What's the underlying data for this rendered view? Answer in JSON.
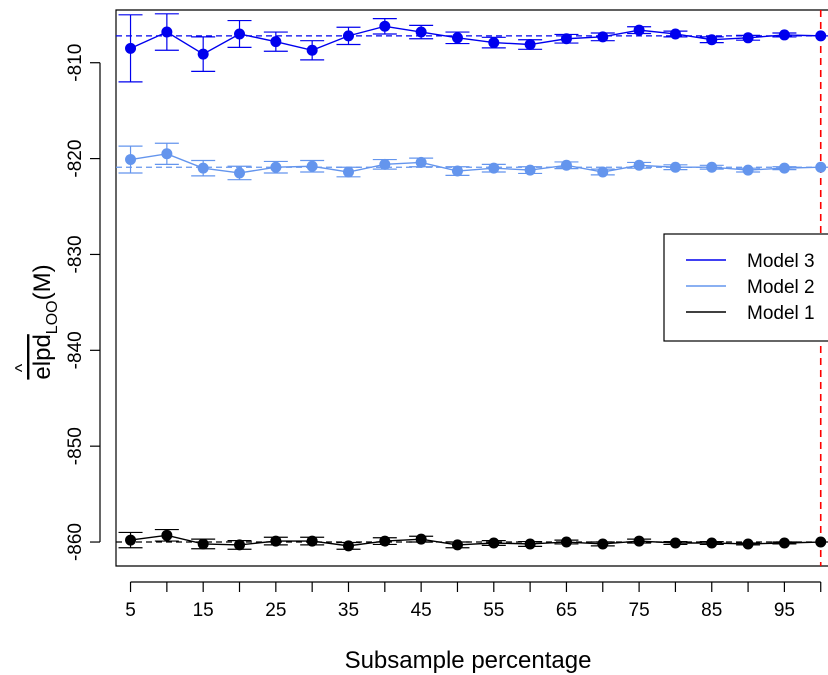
{
  "chart_data": {
    "type": "line",
    "title": "",
    "xlabel": "Subsample percentage",
    "ylabel": {
      "hat": "^",
      "base": "elpd",
      "subscript": "LOO",
      "suffix": "(M)"
    },
    "xlim": [
      3,
      101
    ],
    "ylim": [
      -862.5,
      -804.5
    ],
    "x_ticks": [
      5,
      10,
      15,
      20,
      25,
      30,
      35,
      40,
      45,
      50,
      55,
      60,
      65,
      70,
      75,
      80,
      85,
      90,
      95,
      100
    ],
    "x_tick_labels": [
      "5",
      "15",
      "25",
      "35",
      "45",
      "55",
      "65",
      "75",
      "85",
      "95"
    ],
    "x_tick_label_values": [
      5,
      15,
      25,
      35,
      45,
      55,
      65,
      75,
      85,
      95
    ],
    "y_ticks": [
      -810,
      -820,
      -830,
      -840,
      -850,
      -860
    ],
    "y_tick_labels": [
      "-810",
      "-820",
      "-830",
      "-840",
      "-850",
      "-860"
    ],
    "x": [
      5,
      10,
      15,
      20,
      25,
      30,
      35,
      40,
      45,
      50,
      55,
      60,
      65,
      70,
      75,
      80,
      85,
      90,
      95,
      100
    ],
    "series": [
      {
        "name": "Model 3",
        "color": "#0000ee",
        "reference": -807.2,
        "values": [
          -808.5,
          -806.8,
          -809.1,
          -807.0,
          -807.8,
          -808.7,
          -807.2,
          -806.2,
          -806.8,
          -807.4,
          -807.9,
          -808.1,
          -807.5,
          -807.3,
          -806.6,
          -807.0,
          -807.6,
          -807.4,
          -807.1,
          -807.2
        ],
        "err": [
          3.5,
          1.9,
          1.8,
          1.4,
          1.0,
          1.0,
          0.9,
          0.8,
          0.7,
          0.6,
          0.55,
          0.5,
          0.45,
          0.4,
          0.35,
          0.3,
          0.3,
          0.25,
          0.2,
          0.0
        ]
      },
      {
        "name": "Model 2",
        "color": "#6495ed",
        "reference": -820.9,
        "values": [
          -820.1,
          -819.5,
          -821.0,
          -821.5,
          -820.9,
          -820.8,
          -821.4,
          -820.6,
          -820.4,
          -821.3,
          -821.0,
          -821.2,
          -820.7,
          -821.4,
          -820.7,
          -820.9,
          -820.9,
          -821.2,
          -821.0,
          -820.9
        ],
        "err": [
          1.4,
          1.1,
          0.8,
          0.7,
          0.6,
          0.6,
          0.5,
          0.5,
          0.45,
          0.45,
          0.4,
          0.35,
          0.35,
          0.3,
          0.3,
          0.25,
          0.2,
          0.2,
          0.15,
          0.0
        ]
      },
      {
        "name": "Model 1",
        "color": "#000000",
        "reference": -860.0,
        "values": [
          -859.8,
          -859.3,
          -860.2,
          -860.3,
          -859.9,
          -859.9,
          -860.4,
          -859.9,
          -859.7,
          -860.3,
          -860.1,
          -860.2,
          -860.0,
          -860.2,
          -859.9,
          -860.1,
          -860.1,
          -860.2,
          -860.1,
          -860.0
        ],
        "err": [
          0.8,
          0.6,
          0.5,
          0.45,
          0.4,
          0.4,
          0.35,
          0.35,
          0.3,
          0.3,
          0.25,
          0.25,
          0.2,
          0.2,
          0.2,
          0.15,
          0.15,
          0.1,
          0.1,
          0.0
        ]
      }
    ],
    "vline": {
      "x": 100,
      "color": "#ff0000",
      "style": "dashed"
    },
    "legend": {
      "placement": "right",
      "entries": [
        "Model 3",
        "Model 2",
        "Model 1"
      ]
    },
    "grid": false
  }
}
